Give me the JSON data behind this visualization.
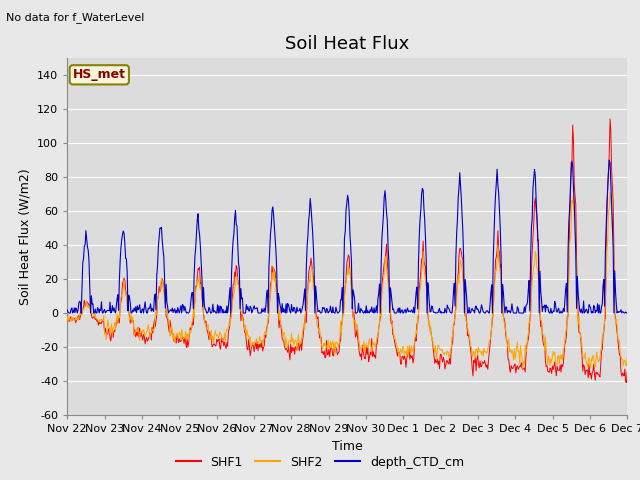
{
  "title": "Soil Heat Flux",
  "ylabel": "Soil Heat Flux (W/m2)",
  "xlabel": "Time",
  "note": "No data for f_WaterLevel",
  "station_label": "HS_met",
  "ylim": [
    -60,
    150
  ],
  "yticks": [
    -60,
    -40,
    -20,
    0,
    20,
    40,
    60,
    80,
    100,
    120,
    140
  ],
  "colors": {
    "SHF1": "#ff0000",
    "SHF2": "#ffa500",
    "depth_CTD_cm": "#0000cc"
  },
  "fig_bg": "#e8e8e8",
  "plot_bg": "#dcdcdc",
  "grid_color": "#ffffff",
  "x_tick_labels": [
    "Nov 22",
    "Nov 23",
    "Nov 24",
    "Nov 25",
    "Nov 26",
    "Nov 27",
    "Nov 28",
    "Nov 29",
    "Nov 30",
    "Dec 1",
    "Dec 2",
    "Dec 3",
    "Dec 4",
    "Dec 5",
    "Dec 6",
    "Dec 7"
  ],
  "title_fontsize": 13,
  "label_fontsize": 9,
  "tick_fontsize": 8,
  "note_fontsize": 8,
  "station_fontsize": 9,
  "legend_fontsize": 9
}
